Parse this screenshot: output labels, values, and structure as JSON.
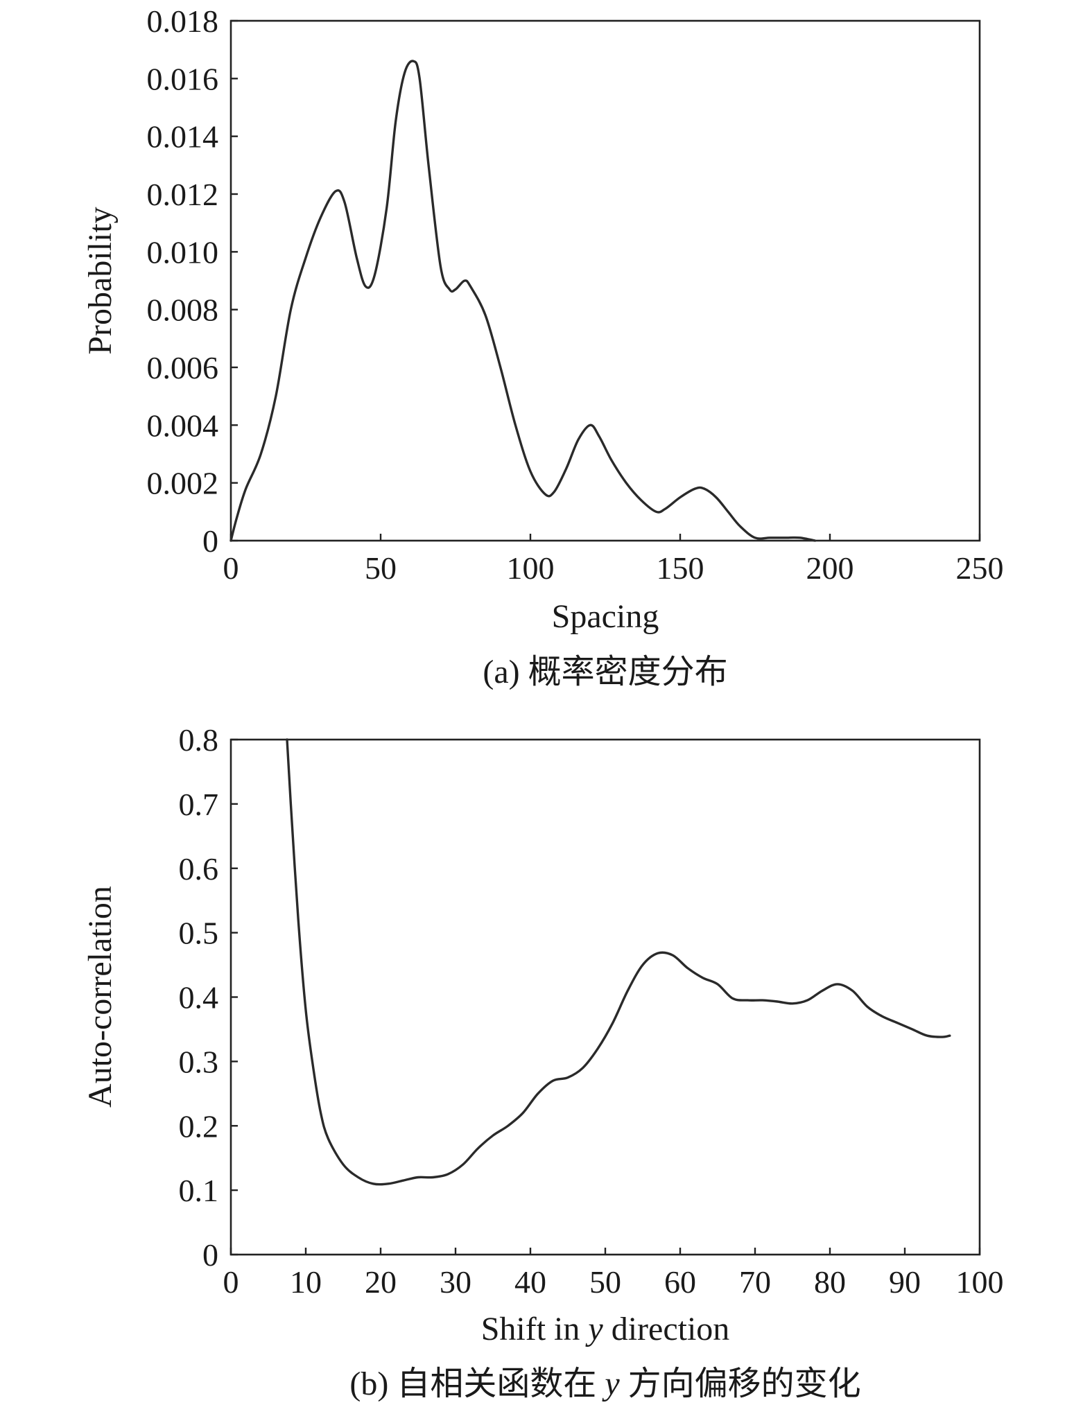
{
  "chart_data": [
    {
      "type": "line",
      "xlabel": "Spacing",
      "ylabel": "Probability",
      "caption": "(a) 概率密度分布",
      "xlim": [
        0,
        250
      ],
      "ylim": [
        0,
        0.018
      ],
      "xticks": [
        0,
        50,
        100,
        150,
        200,
        250
      ],
      "xtick_labels": [
        "0",
        "50",
        "100",
        "150",
        "200",
        "250"
      ],
      "yticks": [
        0,
        0.002,
        0.004,
        0.006,
        0.008,
        0.01,
        0.012,
        0.014,
        0.016,
        0.018
      ],
      "ytick_labels": [
        "0",
        "0.002",
        "0.004",
        "0.006",
        "0.008",
        "0.010",
        "0.012",
        "0.014",
        "0.016",
        "0.018"
      ],
      "grid": false,
      "series": [
        {
          "x": [
            0,
            2,
            5,
            10,
            15,
            20,
            25,
            30,
            35,
            38,
            42,
            45,
            48,
            52,
            55,
            58,
            61,
            63,
            66,
            70,
            73,
            75,
            78,
            80,
            85,
            90,
            95,
            100,
            105,
            108,
            112,
            116,
            120,
            123,
            127,
            132,
            137,
            142,
            145,
            150,
            155,
            158,
            162,
            166,
            170,
            175,
            180,
            185,
            190,
            195
          ],
          "y": [
            0,
            0.0008,
            0.0018,
            0.003,
            0.005,
            0.008,
            0.0098,
            0.0112,
            0.0121,
            0.0117,
            0.0098,
            0.0088,
            0.0092,
            0.0115,
            0.0145,
            0.0162,
            0.0166,
            0.016,
            0.013,
            0.0095,
            0.0087,
            0.0087,
            0.009,
            0.0088,
            0.0078,
            0.006,
            0.004,
            0.0024,
            0.0016,
            0.0017,
            0.0025,
            0.0035,
            0.004,
            0.0036,
            0.0028,
            0.002,
            0.0014,
            0.001,
            0.0011,
            0.0015,
            0.0018,
            0.0018,
            0.0015,
            0.001,
            0.0005,
            0.0001,
            0.0001,
            0.0001,
            0.0001,
            0
          ]
        }
      ]
    },
    {
      "type": "line",
      "xlabel_parts": [
        "Shift in ",
        "y",
        " direction"
      ],
      "ylabel": "Auto-correlation",
      "caption_parts": [
        "(b) 自相关函数在 ",
        "y",
        " 方向偏移的变化"
      ],
      "xlim": [
        0,
        100
      ],
      "ylim": [
        0,
        0.8
      ],
      "xticks": [
        0,
        10,
        20,
        30,
        40,
        50,
        60,
        70,
        80,
        90,
        100
      ],
      "xtick_labels": [
        "0",
        "10",
        "20",
        "30",
        "40",
        "50",
        "60",
        "70",
        "80",
        "90",
        "100"
      ],
      "yticks": [
        0,
        0.1,
        0.2,
        0.3,
        0.4,
        0.5,
        0.6,
        0.7,
        0.8
      ],
      "ytick_labels": [
        "0",
        "0.1",
        "0.2",
        "0.3",
        "0.4",
        "0.5",
        "0.6",
        "0.7",
        "0.8"
      ],
      "grid": false,
      "series": [
        {
          "x": [
            7.5,
            8,
            9,
            10,
            11,
            12,
            13,
            15,
            17,
            19,
            21,
            23,
            25,
            27,
            29,
            31,
            33,
            35,
            37,
            39,
            41,
            43,
            45,
            47,
            49,
            51,
            53,
            55,
            57,
            59,
            61,
            63,
            65,
            67,
            69,
            71,
            73,
            75,
            77,
            79,
            81,
            83,
            85,
            87,
            89,
            91,
            93,
            95,
            96
          ],
          "y": [
            0.8,
            0.7,
            0.52,
            0.38,
            0.29,
            0.22,
            0.18,
            0.14,
            0.12,
            0.11,
            0.11,
            0.115,
            0.12,
            0.12,
            0.125,
            0.14,
            0.165,
            0.185,
            0.2,
            0.22,
            0.25,
            0.27,
            0.275,
            0.29,
            0.32,
            0.36,
            0.41,
            0.45,
            0.468,
            0.465,
            0.445,
            0.43,
            0.42,
            0.398,
            0.395,
            0.395,
            0.393,
            0.39,
            0.395,
            0.41,
            0.42,
            0.41,
            0.385,
            0.37,
            0.36,
            0.35,
            0.34,
            0.338,
            0.34
          ]
        }
      ]
    }
  ]
}
